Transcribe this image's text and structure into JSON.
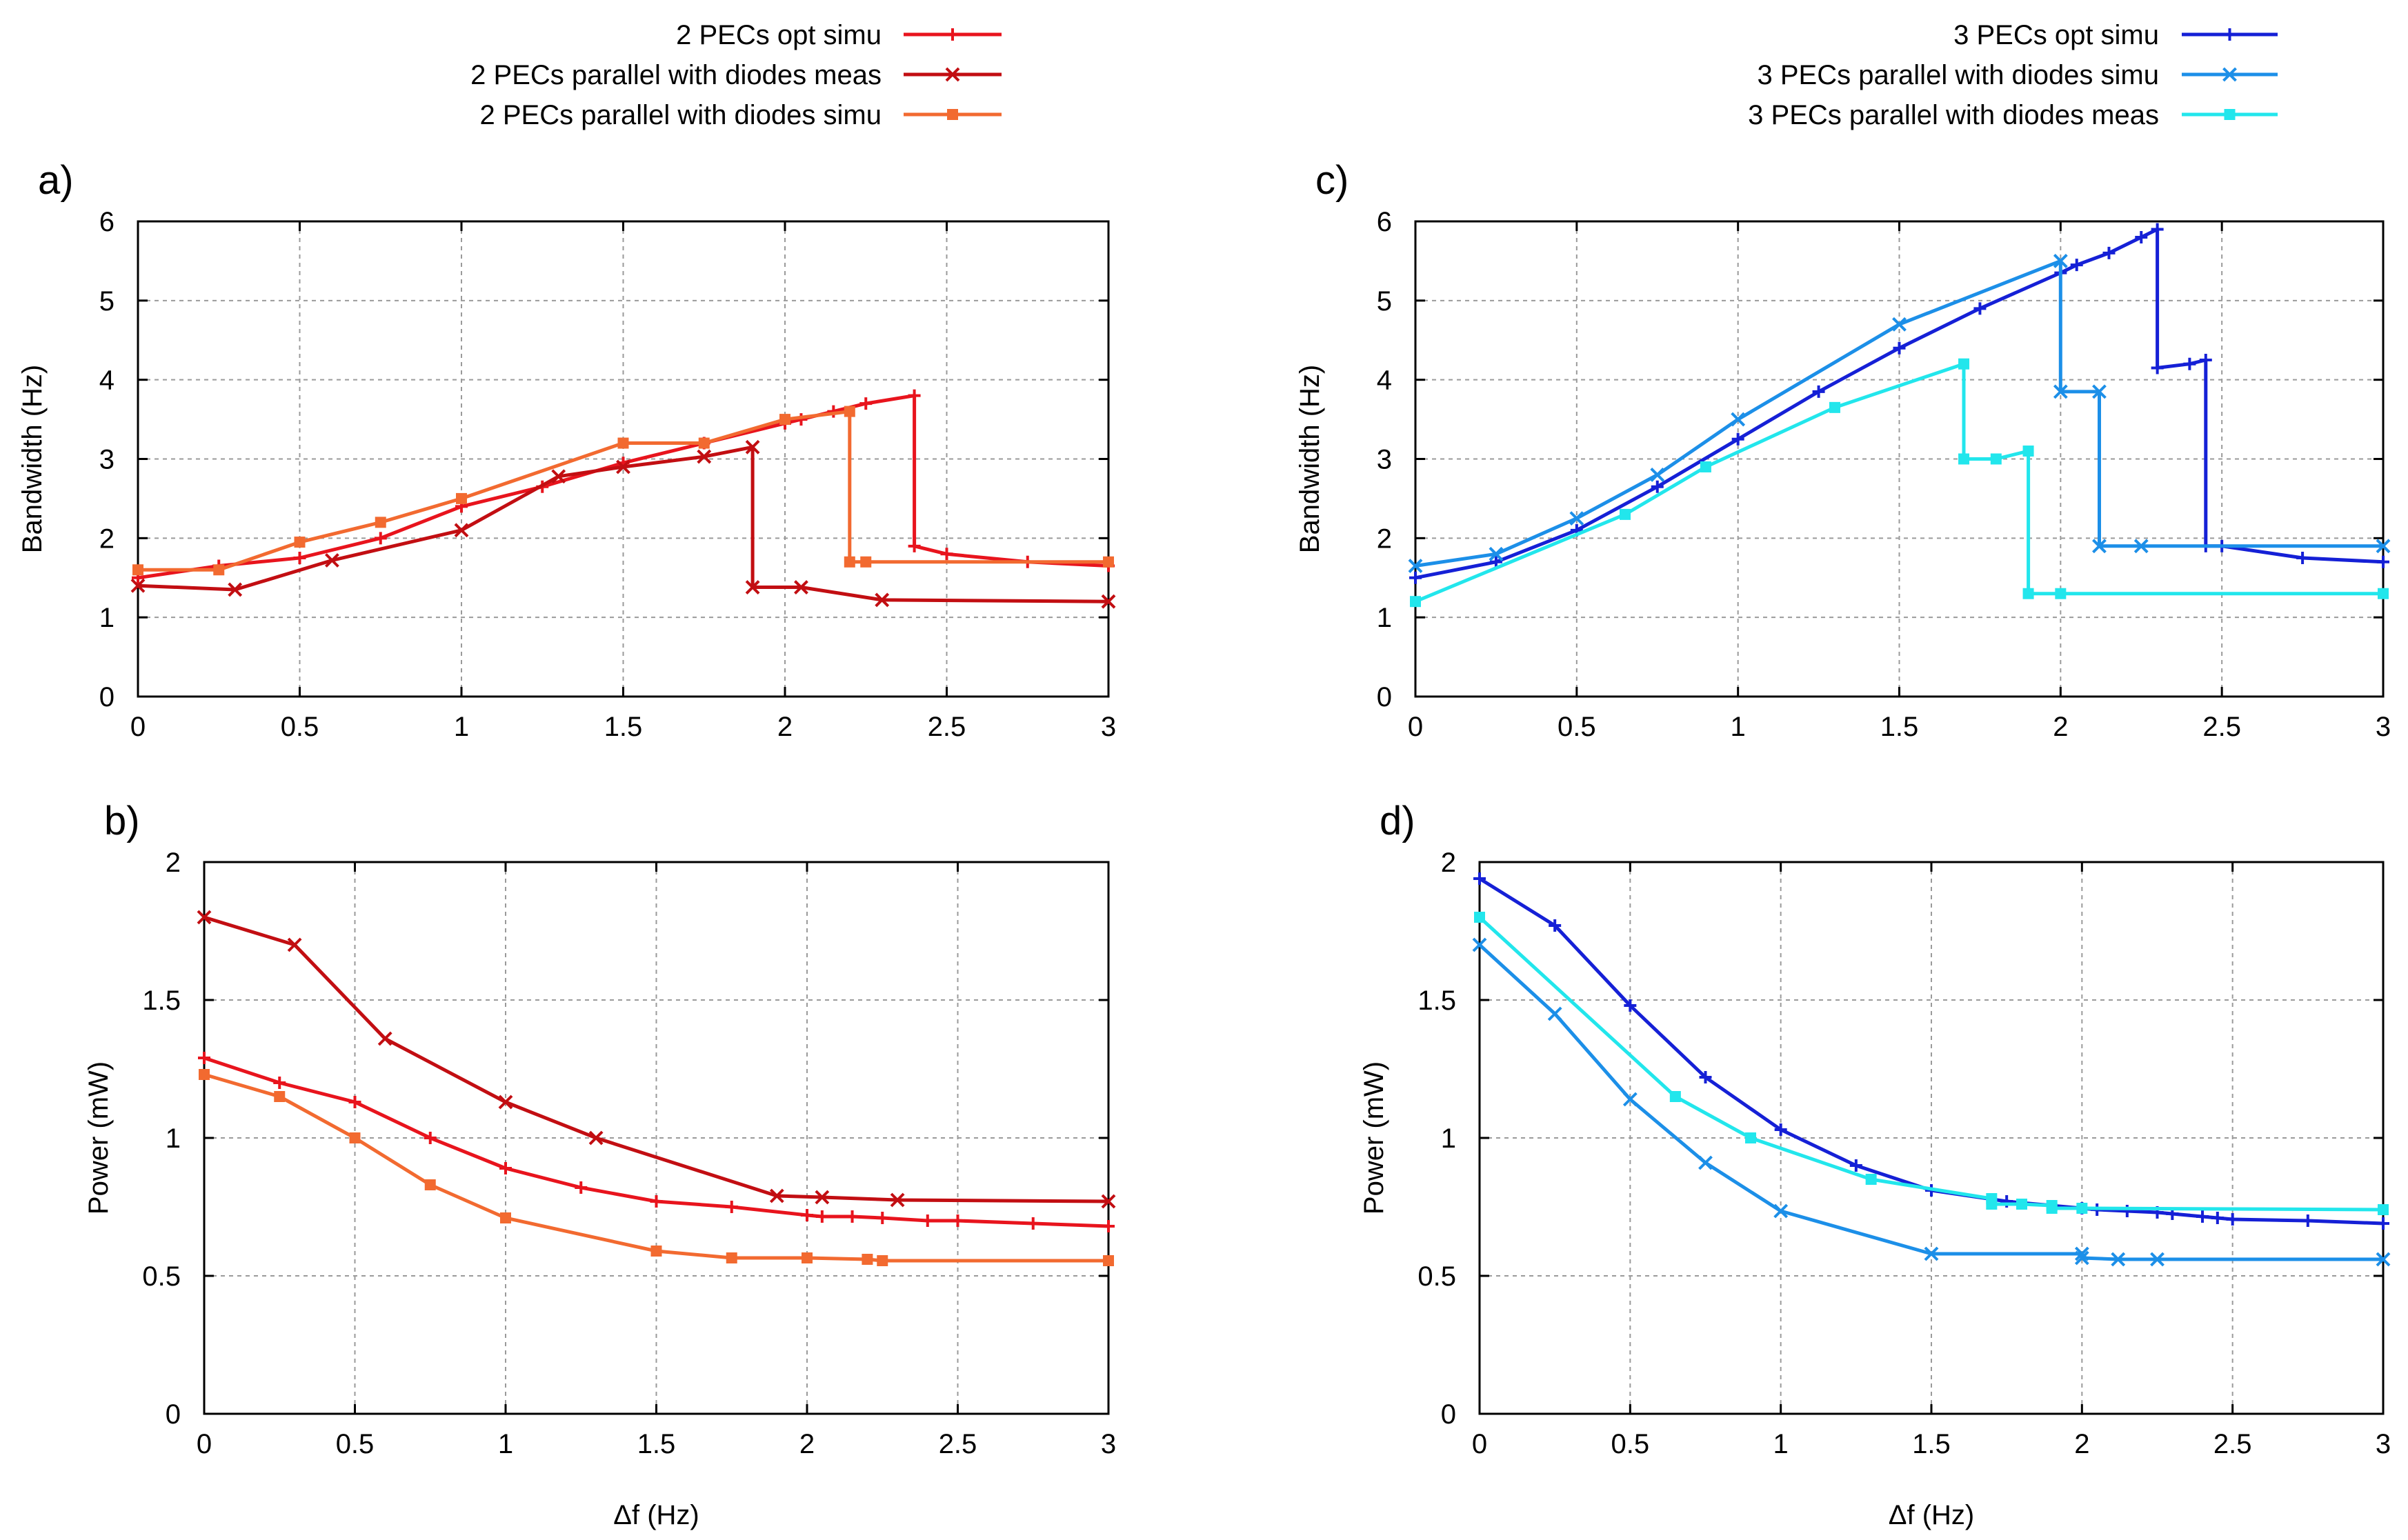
{
  "colors": {
    "two_opt": "#e8141d",
    "two_meas": "#c20e12",
    "two_simu": "#f26a30",
    "three_opt": "#1520d6",
    "three_simu": "#1c8fe8",
    "three_meas": "#22e6ec"
  },
  "chart_data": [
    {
      "id": "a",
      "panel_label": "a)",
      "type": "line",
      "xlabel": "",
      "ylabel": "Bandwidth (Hz)",
      "xlim": [
        0,
        3
      ],
      "ylim": [
        0,
        6
      ],
      "xticks": [
        "0",
        "0.5",
        "1",
        "1.5",
        "2",
        "2.5",
        "3"
      ],
      "yticks": [
        "0",
        "1",
        "2",
        "3",
        "4",
        "5",
        "6"
      ],
      "grid": true,
      "series": [
        {
          "name": "2 PECs opt simu",
          "color": "#e8141d",
          "marker": "plus",
          "x": [
            0,
            0.25,
            0.5,
            0.75,
            1,
            1.25,
            1.5,
            1.75,
            2,
            2.05,
            2.15,
            2.25,
            2.4,
            2.4,
            2.5,
            2.75,
            3
          ],
          "y": [
            1.5,
            1.65,
            1.75,
            2.0,
            2.4,
            2.65,
            2.95,
            3.2,
            3.45,
            3.5,
            3.6,
            3.7,
            3.8,
            1.9,
            1.8,
            1.7,
            1.65
          ]
        },
        {
          "name": "2 PECs parallel with diodes meas",
          "color": "#c20e12",
          "marker": "cross",
          "x": [
            0,
            0.3,
            0.6,
            1,
            1.3,
            1.5,
            1.75,
            1.9,
            1.9,
            2.05,
            2.3,
            3
          ],
          "y": [
            1.4,
            1.35,
            1.72,
            2.1,
            2.78,
            2.9,
            3.03,
            3.15,
            1.38,
            1.38,
            1.22,
            1.2
          ]
        },
        {
          "name": "2 PECs parallel with diodes simu",
          "color": "#f26a30",
          "marker": "square",
          "x": [
            0,
            0.25,
            0.5,
            0.75,
            1,
            1.5,
            1.75,
            2,
            2.2,
            2.2,
            2.25,
            3
          ],
          "y": [
            1.6,
            1.6,
            1.95,
            2.2,
            2.5,
            3.2,
            3.2,
            3.5,
            3.6,
            1.7,
            1.7,
            1.7
          ]
        }
      ]
    },
    {
      "id": "b",
      "panel_label": "b)",
      "type": "line",
      "xlabel": "Δf (Hz)",
      "ylabel": "Power (mW)",
      "xlim": [
        0,
        3
      ],
      "ylim": [
        0,
        2
      ],
      "xticks": [
        "0",
        "0.5",
        "1",
        "1.5",
        "2",
        "2.5",
        "3"
      ],
      "yticks": [
        "0",
        "0.5",
        "1",
        "1.5",
        "2"
      ],
      "grid": true,
      "series": [
        {
          "name": "2 PECs opt simu",
          "color": "#e8141d",
          "marker": "plus",
          "x": [
            0,
            0.25,
            0.5,
            0.75,
            1,
            1.25,
            1.5,
            1.75,
            2,
            2.05,
            2.15,
            2.25,
            2.4,
            2.5,
            2.75,
            3
          ],
          "y": [
            1.29,
            1.2,
            1.13,
            1.0,
            0.89,
            0.82,
            0.77,
            0.75,
            0.72,
            0.715,
            0.715,
            0.71,
            0.7,
            0.7,
            0.69,
            0.68
          ]
        },
        {
          "name": "2 PECs parallel with diodes meas",
          "color": "#c20e12",
          "marker": "cross",
          "x": [
            0,
            0.3,
            0.6,
            1,
            1.3,
            1.9,
            2.05,
            2.3,
            3
          ],
          "y": [
            1.8,
            1.7,
            1.36,
            1.13,
            1.0,
            0.79,
            0.785,
            0.775,
            0.77
          ]
        },
        {
          "name": "2 PECs parallel with diodes simu",
          "color": "#f26a30",
          "marker": "square",
          "x": [
            0,
            0.25,
            0.5,
            0.75,
            1,
            1.5,
            1.75,
            2,
            2.2,
            2.25,
            3
          ],
          "y": [
            1.23,
            1.15,
            1.0,
            0.83,
            0.71,
            0.59,
            0.565,
            0.565,
            0.56,
            0.555,
            0.555
          ]
        }
      ]
    },
    {
      "id": "c",
      "panel_label": "c)",
      "type": "line",
      "xlabel": "",
      "ylabel": "Bandwidth (Hz)",
      "xlim": [
        0,
        3
      ],
      "ylim": [
        0,
        6
      ],
      "xticks": [
        "0",
        "0.5",
        "1",
        "1.5",
        "2",
        "2.5",
        "3"
      ],
      "yticks": [
        "0",
        "1",
        "2",
        "3",
        "4",
        "5",
        "6"
      ],
      "grid": true,
      "series": [
        {
          "name": "3 PECs opt simu",
          "color": "#1520d6",
          "marker": "plus",
          "x": [
            0,
            0.25,
            0.5,
            0.75,
            1,
            1.25,
            1.5,
            1.75,
            2,
            2.05,
            2.15,
            2.25,
            2.3,
            2.3,
            2.4,
            2.45,
            2.45,
            2.5,
            2.75,
            3
          ],
          "y": [
            1.5,
            1.7,
            2.1,
            2.65,
            3.25,
            3.85,
            4.4,
            4.9,
            5.35,
            5.45,
            5.6,
            5.8,
            5.9,
            4.15,
            4.2,
            4.25,
            1.9,
            1.9,
            1.75,
            1.7
          ]
        },
        {
          "name": "3 PECs parallel with diodes simu",
          "color": "#1c8fe8",
          "marker": "cross",
          "x": [
            0,
            0.25,
            0.5,
            0.75,
            1,
            1.5,
            2,
            2,
            2.12,
            2.12,
            2.25,
            3
          ],
          "y": [
            1.65,
            1.8,
            2.25,
            2.8,
            3.5,
            4.7,
            5.5,
            3.85,
            3.85,
            1.9,
            1.9,
            1.9
          ]
        },
        {
          "name": "3 PECs parallel with diodes meas",
          "color": "#22e6ec",
          "marker": "square",
          "x": [
            0,
            0.65,
            0.9,
            1.3,
            1.7,
            1.7,
            1.8,
            1.9,
            1.9,
            2,
            3
          ],
          "y": [
            1.2,
            2.3,
            2.9,
            3.65,
            4.2,
            3.0,
            3.0,
            3.1,
            1.3,
            1.3,
            1.3
          ]
        }
      ]
    },
    {
      "id": "d",
      "panel_label": "d)",
      "type": "line",
      "xlabel": "Δf (Hz)",
      "ylabel": "Power (mW)",
      "xlim": [
        0,
        3
      ],
      "ylim": [
        0,
        2
      ],
      "xticks": [
        "0",
        "0.5",
        "1",
        "1.5",
        "2",
        "2.5",
        "3"
      ],
      "yticks": [
        "0",
        "0.5",
        "1",
        "1.5",
        "2"
      ],
      "grid": true,
      "series": [
        {
          "name": "3 PECs opt simu",
          "color": "#1520d6",
          "marker": "plus",
          "x": [
            0,
            0.25,
            0.5,
            0.75,
            1,
            1.25,
            1.5,
            1.75,
            2,
            2.05,
            2.15,
            2.25,
            2.3,
            2.4,
            2.45,
            2.5,
            2.75,
            3
          ],
          "y": [
            1.94,
            1.77,
            1.48,
            1.22,
            1.03,
            0.9,
            0.81,
            0.77,
            0.745,
            0.74,
            0.735,
            0.73,
            0.725,
            0.715,
            0.71,
            0.705,
            0.7,
            0.69
          ]
        },
        {
          "name": "3 PECs parallel with diodes simu",
          "color": "#1c8fe8",
          "marker": "cross",
          "x": [
            0,
            0.25,
            0.5,
            0.75,
            1,
            1.5,
            2,
            2,
            2.12,
            2.25,
            3
          ],
          "y": [
            1.7,
            1.45,
            1.14,
            0.91,
            0.735,
            0.58,
            0.58,
            0.565,
            0.56,
            0.56,
            0.56
          ]
        },
        {
          "name": "3 PECs parallel with diodes meas",
          "color": "#22e6ec",
          "marker": "square",
          "x": [
            0,
            0.65,
            0.9,
            1.3,
            1.7,
            1.7,
            1.8,
            1.9,
            1.9,
            2,
            3
          ],
          "y": [
            1.8,
            1.15,
            1.0,
            0.85,
            0.78,
            0.76,
            0.76,
            0.755,
            0.745,
            0.745,
            0.74
          ]
        }
      ]
    }
  ],
  "legend_left": [
    {
      "label": "2 PECs opt simu",
      "color": "#e8141d",
      "marker": "plus"
    },
    {
      "label": "2 PECs parallel with diodes meas",
      "color": "#c20e12",
      "marker": "cross"
    },
    {
      "label": "2 PECs parallel with diodes simu",
      "color": "#f26a30",
      "marker": "square"
    }
  ],
  "legend_right": [
    {
      "label": "3 PECs opt simu",
      "color": "#1520d6",
      "marker": "plus"
    },
    {
      "label": "3 PECs parallel with diodes simu",
      "color": "#1c8fe8",
      "marker": "cross"
    },
    {
      "label": "3 PECs parallel with diodes meas",
      "color": "#22e6ec",
      "marker": "square"
    }
  ]
}
